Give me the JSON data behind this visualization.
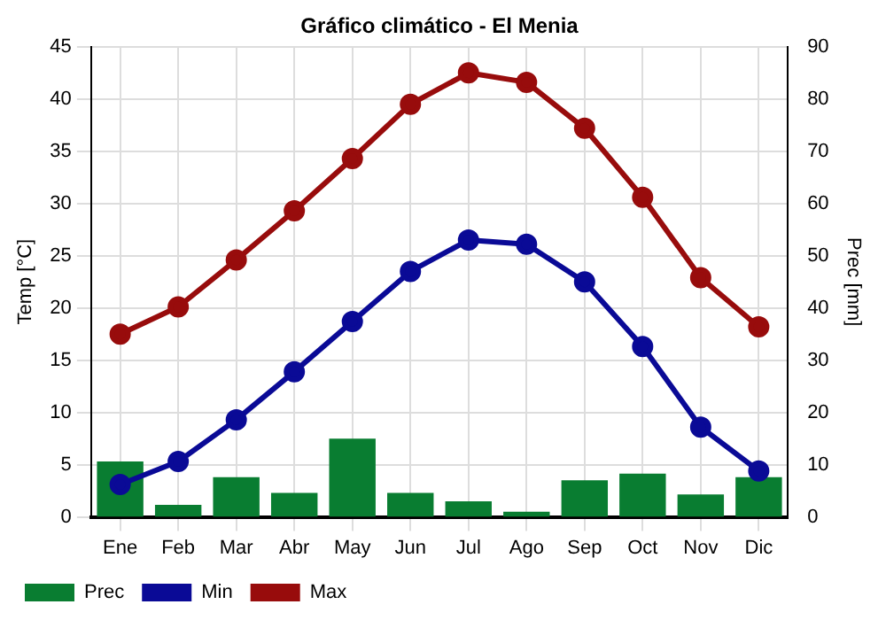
{
  "chart_data": {
    "type": "line",
    "title": "Gráfico climático - El Menia",
    "ylabel": "Temp [°C]",
    "y2label": "Prec [mm]",
    "categories": [
      "Ene",
      "Feb",
      "Mar",
      "Abr",
      "May",
      "Jun",
      "Jul",
      "Ago",
      "Sep",
      "Oct",
      "Nov",
      "Dic"
    ],
    "series": [
      {
        "name": "Prec",
        "type": "bar",
        "axis": "y2",
        "color": "#097d31",
        "values": [
          10.6,
          2.3,
          7.6,
          4.6,
          15,
          4.6,
          3,
          1,
          7,
          8.3,
          4.3,
          7.6
        ]
      },
      {
        "name": "Min",
        "color": "#0a0a96",
        "values": [
          3.1,
          5.3,
          9.3,
          13.9,
          18.7,
          23.5,
          26.5,
          26.1,
          22.5,
          16.3,
          8.6,
          4.4
        ]
      },
      {
        "name": "Max",
        "color": "#980c0c",
        "values": [
          17.5,
          20.1,
          24.6,
          29.3,
          34.3,
          39.5,
          42.5,
          41.6,
          37.2,
          30.6,
          22.9,
          18.2
        ]
      }
    ],
    "ylim": [
      0,
      45
    ],
    "yticks": [
      0,
      5,
      10,
      15,
      20,
      25,
      30,
      35,
      40,
      45
    ],
    "y2lim": [
      0,
      90
    ],
    "y2ticks": [
      0,
      10,
      20,
      30,
      40,
      50,
      60,
      70,
      80,
      90
    ],
    "grid": true,
    "legend": "bottom left",
    "marker": "circle",
    "line_style": "solid"
  }
}
